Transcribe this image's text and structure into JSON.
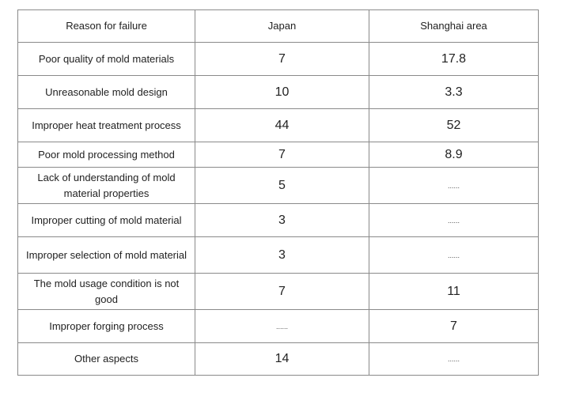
{
  "table": {
    "headers": {
      "reason": "Reason for failure",
      "japan": "Japan",
      "shanghai": "Shanghai area"
    },
    "rows": [
      {
        "reason": "Poor quality of mold materials",
        "japan": "7",
        "shanghai": "17.8"
      },
      {
        "reason": "Unreasonable mold design",
        "japan": "10",
        "shanghai": "3.3"
      },
      {
        "reason": "Improper heat treatment process",
        "japan": "44",
        "shanghai": "52"
      },
      {
        "reason": "Poor mold processing method",
        "japan": "7",
        "shanghai": "8.9"
      },
      {
        "reason": "Lack of understanding of mold material properties",
        "japan": "5",
        "shanghai": "......"
      },
      {
        "reason": "Improper cutting of mold material",
        "japan": "3",
        "shanghai": "......"
      },
      {
        "reason": "Improper selection of mold material",
        "japan": "3",
        "shanghai": "......"
      },
      {
        "reason": "The mold usage condition is not good",
        "japan": "7",
        "shanghai": "11"
      },
      {
        "reason": "Improper forging process",
        "japan": "......",
        "shanghai": "7"
      },
      {
        "reason": "Other aspects",
        "japan": "14",
        "shanghai": "......"
      }
    ]
  }
}
